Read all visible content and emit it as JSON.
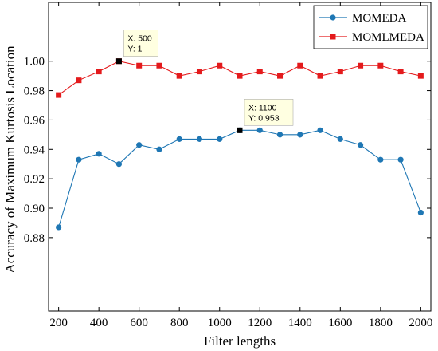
{
  "chart_data": {
    "type": "line",
    "xlabel": "Filter lengths",
    "ylabel": "Accuracy of Maximum Kurtosis Location",
    "xlim": [
      150,
      2050
    ],
    "ylim": [
      0.83,
      1.04
    ],
    "x_ticks": [
      200,
      400,
      600,
      800,
      1000,
      1200,
      1400,
      1600,
      1800,
      2000
    ],
    "y_ticks": [
      0.88,
      0.9,
      0.92,
      0.94,
      0.96,
      0.98,
      1.0
    ],
    "y_tick_labels": [
      "0.88",
      "0.90",
      "0.92",
      "0.94",
      "0.96",
      "0.98",
      "1.00"
    ],
    "grid": false,
    "legend_position": "top-right",
    "x": [
      200,
      300,
      400,
      500,
      600,
      700,
      800,
      900,
      1000,
      1100,
      1200,
      1300,
      1400,
      1500,
      1600,
      1700,
      1800,
      1900,
      2000
    ],
    "series": [
      {
        "name": "MOMEDA",
        "color": "#1f77b4",
        "marker": "circle",
        "values": [
          0.887,
          0.933,
          0.937,
          0.93,
          0.943,
          0.94,
          0.947,
          0.947,
          0.947,
          0.953,
          0.953,
          0.95,
          0.95,
          0.953,
          0.947,
          0.943,
          0.933,
          0.933,
          0.897
        ]
      },
      {
        "name": "MOMLMEDA",
        "color": "#e41a1c",
        "marker": "square",
        "values": [
          0.977,
          0.987,
          0.993,
          1.0,
          0.997,
          0.997,
          0.99,
          0.993,
          0.997,
          0.99,
          0.993,
          0.99,
          0.997,
          0.99,
          0.993,
          0.997,
          0.997,
          0.993,
          0.99
        ]
      }
    ],
    "annotations": [
      {
        "x": 500,
        "y": 1.0,
        "line1": "X: 500",
        "line2": "Y: 1"
      },
      {
        "x": 1100,
        "y": 0.953,
        "line1": "X: 1100",
        "line2": "Y: 0.953"
      }
    ]
  }
}
